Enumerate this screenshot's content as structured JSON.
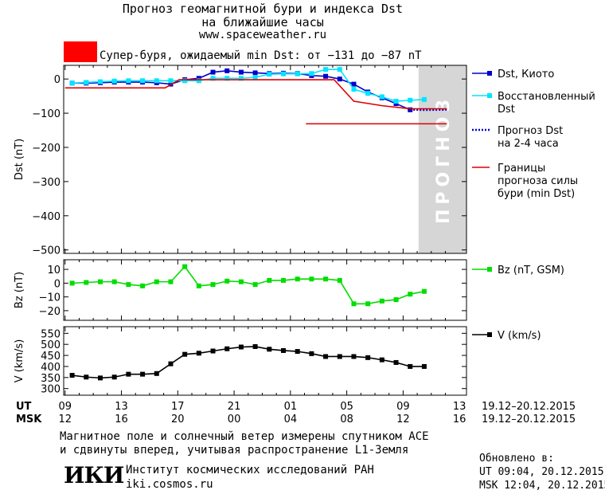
{
  "header": {
    "title_line1": "Прогноз геомагнитной бури и индекса Dst",
    "title_line2": "на ближайшие часы",
    "site": "www.spaceweather.ru",
    "storm_text": "Супер-буря, ожидаемый min Dst: от −131 до −87 nT",
    "storm_color": "#ff0000"
  },
  "footer": {
    "line1": "Магнитное поле и солнечный ветер измерены спутником ACE",
    "line2": "и сдвинуты вперед, учитывая распространение L1-Земля",
    "logo_text": "ИКИ",
    "institute": "Институт космических исследований РАН",
    "institute_url": "iki.cosmos.ru",
    "updated_label": "Обновлено в:",
    "updated_ut": "UT  09:04, 20.12.2015",
    "updated_msk": "MSK 12:04, 20.12.2015"
  },
  "chart_data": [
    {
      "type": "line",
      "ylabel": "Dst (nT)",
      "ylim": [
        -510,
        40
      ],
      "yticks": [
        0,
        -100,
        -200,
        -300,
        -400,
        -500
      ],
      "ytick_labels": [
        "0",
        "−100",
        "−200",
        "−300",
        "−400",
        "−500"
      ],
      "forecast_label": "ПРОГНОЗ",
      "forecast_region_x": [
        9,
        13
      ],
      "series": [
        {
          "name": "Dst, Киото",
          "color": "#0000cc",
          "marker": "square",
          "x": [
            0,
            1,
            2,
            3,
            4,
            5,
            6,
            7,
            8,
            9,
            10,
            11,
            12,
            13,
            14,
            15,
            16,
            17,
            18,
            19,
            20,
            21,
            22,
            23,
            24
          ],
          "y": [
            -12,
            -12,
            -11,
            -9,
            -9,
            -9,
            -11,
            -15,
            -2,
            2,
            20,
            24,
            20,
            18,
            16,
            17,
            16,
            10,
            8,
            0,
            -15,
            -38,
            -55,
            -72,
            -90
          ]
        },
        {
          "name": "Восстановленный Dst",
          "color": "#00e5ff",
          "marker": "square",
          "x": [
            0,
            1,
            2,
            3,
            4,
            5,
            6,
            7,
            8,
            9,
            10,
            11,
            12,
            13,
            14,
            15,
            16,
            17,
            18,
            19,
            20,
            21,
            22,
            23,
            24,
            25
          ],
          "y": [
            -12,
            -10,
            -8,
            -6,
            -5,
            -5,
            -5,
            -5,
            -5,
            -5,
            2,
            2,
            2,
            5,
            14,
            15,
            15,
            16,
            28,
            28,
            -30,
            -42,
            -52,
            -65,
            -62,
            -60
          ]
        },
        {
          "name": "Прогноз Dst на 2-4 часа",
          "color": "#0000cc",
          "marker": "none",
          "dashed": true,
          "x": [
            24,
            25,
            26.6
          ],
          "y": [
            -90,
            -91,
            -90
          ]
        },
        {
          "name": "Границы прогноза силы бури (min Dst)",
          "color": "#dd0000",
          "marker": "none",
          "x": [
            -0.5,
            6.6,
            7.6,
            15,
            16,
            16.6,
            17.6,
            18.6,
            20,
            22,
            24,
            26.6
          ],
          "y": [
            -26,
            -26,
            -2,
            -2,
            -2,
            -2,
            -2,
            -2,
            -65,
            -78,
            -87,
            -87
          ]
        },
        {
          "name": "",
          "color": "#dd0000",
          "marker": "none",
          "x": [
            16.6,
            26.6
          ],
          "y": [
            -131,
            -131
          ]
        }
      ]
    },
    {
      "type": "line",
      "ylabel": "Bz (nT)",
      "ylim": [
        -27,
        17
      ],
      "yticks": [
        10,
        0,
        -10,
        -20
      ],
      "ytick_labels": [
        "10",
        "0",
        "−10",
        "−20"
      ],
      "series": [
        {
          "name": "Bz (nT, GSM)",
          "color": "#00dd00",
          "marker": "square",
          "x": [
            0,
            1,
            2,
            3,
            4,
            5,
            6,
            7,
            8,
            9,
            10,
            11,
            12,
            13,
            14,
            15,
            16,
            17,
            18,
            19,
            20,
            21,
            22,
            23,
            24,
            25
          ],
          "y": [
            0,
            0.5,
            1,
            1,
            -1,
            -2,
            1,
            1,
            12,
            -2,
            -1,
            1.5,
            1,
            -1,
            2,
            2,
            3,
            3,
            3,
            2,
            -15,
            -15,
            -13,
            -12,
            -8,
            -6
          ]
        }
      ]
    },
    {
      "type": "line",
      "ylabel": "V (km/s)",
      "ylim": [
        270,
        580
      ],
      "yticks": [
        550,
        500,
        450,
        400,
        350,
        300
      ],
      "ytick_labels": [
        "550",
        "500",
        "450",
        "400",
        "350",
        "300"
      ],
      "series": [
        {
          "name": "V (km/s)",
          "color": "#000000",
          "marker": "square",
          "x": [
            0,
            1,
            2,
            3,
            4,
            5,
            6,
            7,
            8,
            9,
            10,
            11,
            12,
            13,
            14,
            15,
            16,
            17,
            18,
            19,
            20,
            21,
            22,
            23,
            24,
            25
          ],
          "y": [
            360,
            352,
            348,
            352,
            365,
            365,
            368,
            412,
            455,
            460,
            470,
            480,
            488,
            490,
            478,
            472,
            468,
            458,
            445,
            445,
            445,
            440,
            430,
            418,
            400,
            400
          ]
        }
      ]
    }
  ],
  "time_axis": {
    "row1_label": "UT",
    "row2_label": "MSK",
    "ut_ticks": [
      "09",
      "13",
      "17",
      "21",
      "01",
      "05",
      "09",
      "13"
    ],
    "msk_ticks": [
      "12",
      "16",
      "20",
      "00",
      "04",
      "08",
      "12",
      "16"
    ],
    "date_range_ut": "19.12–20.12.2015",
    "date_range_msk": "19.12–20.12.2015"
  }
}
